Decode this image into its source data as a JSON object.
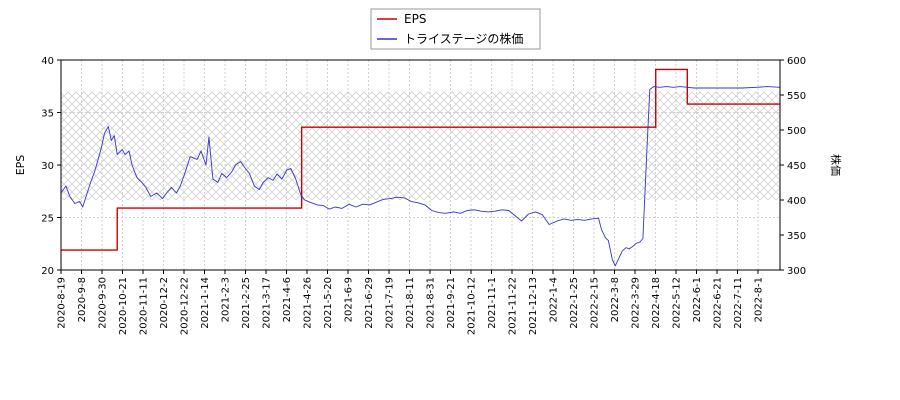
{
  "chart_data": {
    "type": "line",
    "legend": {
      "placement": "top-center",
      "entries": [
        {
          "label": "EPS",
          "color": "#cc0000"
        },
        {
          "label": "トライステージの株価",
          "color": "#3333cc"
        }
      ]
    },
    "left_axis": {
      "label": "EPS",
      "range": [
        20,
        40
      ],
      "ticks": [
        "20",
        "25",
        "30",
        "35",
        "40"
      ]
    },
    "right_axis": {
      "label": "株価",
      "range": [
        300,
        600
      ],
      "ticks": [
        "300",
        "350",
        "400",
        "450",
        "500",
        "550",
        "600"
      ]
    },
    "x_axis": {
      "range": [
        "2020-08-19",
        "2022-08-18"
      ],
      "tick_labels": [
        "2020-8-19",
        "2020-9-8",
        "2020-9-30",
        "2020-10-21",
        "2020-11-11",
        "2020-12-2",
        "2020-12-22",
        "2021-1-14",
        "2021-2-3",
        "2021-2-25",
        "2021-3-17",
        "2021-4-6",
        "2021-4-26",
        "2021-5-20",
        "2021-6-9",
        "2021-6-29",
        "2021-7-19",
        "2021-8-11",
        "2021-8-31",
        "2021-9-21",
        "2021-10-12",
        "2021-11-1",
        "2021-11-22",
        "2021-12-13",
        "2022-1-4",
        "2022-1-25",
        "2022-2-15",
        "2022-3-8",
        "2022-3-29",
        "2022-4-18",
        "2022-5-12",
        "2022-6-1",
        "2022-6-21",
        "2022-7-11",
        "2022-8-1"
      ]
    },
    "grid": true,
    "hatched_band": {
      "axis": "right",
      "range": [
        400,
        555
      ]
    },
    "series": [
      {
        "name": "EPS",
        "axis": "left",
        "color": "#cc0000",
        "step": true,
        "points": [
          [
            "2020-08-19",
            21.9
          ],
          [
            "2020-10-15",
            21.9
          ],
          [
            "2020-10-15",
            25.9
          ],
          [
            "2021-04-20",
            25.9
          ],
          [
            "2021-04-20",
            33.6
          ],
          [
            "2022-04-14",
            33.6
          ],
          [
            "2022-04-14",
            39.1
          ],
          [
            "2022-05-16",
            39.1
          ],
          [
            "2022-05-16",
            35.8
          ],
          [
            "2022-08-18",
            35.8
          ]
        ]
      },
      {
        "name": "トライステージの株価",
        "axis": "right",
        "color": "#3333cc",
        "points": [
          [
            "2020-08-19",
            410
          ],
          [
            "2020-08-24",
            420
          ],
          [
            "2020-08-28",
            405
          ],
          [
            "2020-09-02",
            395
          ],
          [
            "2020-09-07",
            398
          ],
          [
            "2020-09-10",
            390
          ],
          [
            "2020-09-15",
            412
          ],
          [
            "2020-09-18",
            425
          ],
          [
            "2020-09-22",
            440
          ],
          [
            "2020-09-25",
            455
          ],
          [
            "2020-09-29",
            475
          ],
          [
            "2020-10-02",
            495
          ],
          [
            "2020-10-06",
            505
          ],
          [
            "2020-10-09",
            485
          ],
          [
            "2020-10-12",
            492
          ],
          [
            "2020-10-15",
            465
          ],
          [
            "2020-10-20",
            472
          ],
          [
            "2020-10-23",
            465
          ],
          [
            "2020-10-27",
            470
          ],
          [
            "2020-10-30",
            450
          ],
          [
            "2020-11-04",
            432
          ],
          [
            "2020-11-09",
            425
          ],
          [
            "2020-11-13",
            418
          ],
          [
            "2020-11-18",
            405
          ],
          [
            "2020-11-24",
            410
          ],
          [
            "2020-11-30",
            402
          ],
          [
            "2020-12-04",
            410
          ],
          [
            "2020-12-09",
            418
          ],
          [
            "2020-12-14",
            410
          ],
          [
            "2020-12-18",
            420
          ],
          [
            "2020-12-23",
            440
          ],
          [
            "2020-12-28",
            462
          ],
          [
            "2021-01-04",
            458
          ],
          [
            "2021-01-08",
            470
          ],
          [
            "2021-01-13",
            450
          ],
          [
            "2021-01-16",
            490
          ],
          [
            "2021-01-20",
            430
          ],
          [
            "2021-01-25",
            425
          ],
          [
            "2021-01-29",
            438
          ],
          [
            "2021-02-03",
            432
          ],
          [
            "2021-02-08",
            440
          ],
          [
            "2021-02-12",
            450
          ],
          [
            "2021-02-17",
            455
          ],
          [
            "2021-02-22",
            445
          ],
          [
            "2021-02-26",
            438
          ],
          [
            "2021-03-03",
            420
          ],
          [
            "2021-03-08",
            415
          ],
          [
            "2021-03-12",
            425
          ],
          [
            "2021-03-17",
            432
          ],
          [
            "2021-03-22",
            428
          ],
          [
            "2021-03-26",
            437
          ],
          [
            "2021-03-31",
            430
          ],
          [
            "2021-04-05",
            443
          ],
          [
            "2021-04-09",
            445
          ],
          [
            "2021-04-14",
            430
          ],
          [
            "2021-04-19",
            408
          ],
          [
            "2021-04-23",
            400
          ],
          [
            "2021-04-28",
            397
          ],
          [
            "2021-05-06",
            393
          ],
          [
            "2021-05-12",
            392
          ],
          [
            "2021-05-18",
            387
          ],
          [
            "2021-05-24",
            390
          ],
          [
            "2021-05-31",
            388
          ],
          [
            "2021-06-07",
            394
          ],
          [
            "2021-06-14",
            390
          ],
          [
            "2021-06-21",
            394
          ],
          [
            "2021-06-28",
            393
          ],
          [
            "2021-07-05",
            397
          ],
          [
            "2021-07-12",
            401
          ],
          [
            "2021-07-19",
            402
          ],
          [
            "2021-07-26",
            404
          ],
          [
            "2021-08-02",
            403
          ],
          [
            "2021-08-09",
            398
          ],
          [
            "2021-08-16",
            396
          ],
          [
            "2021-08-23",
            393
          ],
          [
            "2021-08-30",
            385
          ],
          [
            "2021-09-06",
            382
          ],
          [
            "2021-09-13",
            381
          ],
          [
            "2021-09-21",
            383
          ],
          [
            "2021-09-28",
            381
          ],
          [
            "2021-10-05",
            385
          ],
          [
            "2021-10-12",
            386
          ],
          [
            "2021-10-19",
            384
          ],
          [
            "2021-10-26",
            383
          ],
          [
            "2021-11-02",
            384
          ],
          [
            "2021-11-09",
            386
          ],
          [
            "2021-11-16",
            385
          ],
          [
            "2021-11-22",
            378
          ],
          [
            "2021-11-29",
            370
          ],
          [
            "2021-12-06",
            380
          ],
          [
            "2021-12-13",
            383
          ],
          [
            "2021-12-20",
            379
          ],
          [
            "2021-12-27",
            365
          ],
          [
            "2022-01-04",
            370
          ],
          [
            "2022-01-11",
            373
          ],
          [
            "2022-01-18",
            371
          ],
          [
            "2022-01-25",
            372
          ],
          [
            "2022-02-01",
            371
          ],
          [
            "2022-02-08",
            373
          ],
          [
            "2022-02-15",
            374
          ],
          [
            "2022-02-18",
            358
          ],
          [
            "2022-02-22",
            346
          ],
          [
            "2022-02-25",
            342
          ],
          [
            "2022-03-01",
            315
          ],
          [
            "2022-03-04",
            306
          ],
          [
            "2022-03-08",
            318
          ],
          [
            "2022-03-11",
            327
          ],
          [
            "2022-03-15",
            332
          ],
          [
            "2022-03-18",
            330
          ],
          [
            "2022-03-22",
            334
          ],
          [
            "2022-03-25",
            338
          ],
          [
            "2022-03-29",
            340
          ],
          [
            "2022-04-01",
            345
          ],
          [
            "2022-04-05",
            470
          ],
          [
            "2022-04-08",
            558
          ],
          [
            "2022-04-12",
            562
          ],
          [
            "2022-04-18",
            561
          ],
          [
            "2022-04-25",
            562
          ],
          [
            "2022-05-02",
            561
          ],
          [
            "2022-05-09",
            562
          ],
          [
            "2022-05-16",
            561
          ],
          [
            "2022-05-23",
            560
          ],
          [
            "2022-06-01",
            560
          ],
          [
            "2022-06-13",
            560
          ],
          [
            "2022-06-27",
            560
          ],
          [
            "2022-07-11",
            560
          ],
          [
            "2022-07-25",
            561
          ],
          [
            "2022-08-05",
            562
          ],
          [
            "2022-08-18",
            561
          ]
        ]
      }
    ]
  }
}
